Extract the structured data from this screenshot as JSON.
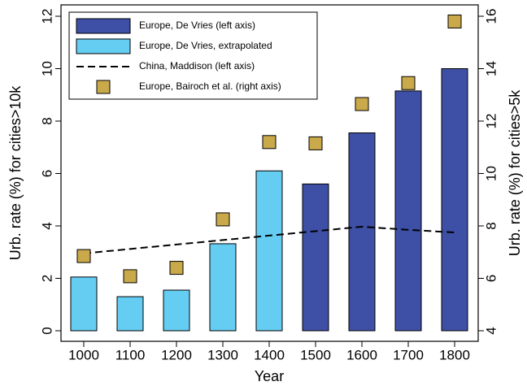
{
  "chart_data": {
    "type": "bar",
    "xlabel": "Year",
    "ylabel": "Urb. rate (%) for cities>10k",
    "y2label": "Urb. rate (%) for cities>5k",
    "categories": [
      "1000",
      "1100",
      "1200",
      "1300",
      "1400",
      "1500",
      "1600",
      "1700",
      "1800"
    ],
    "ylim": [
      0,
      12
    ],
    "yticks": [
      0,
      2,
      4,
      6,
      8,
      10,
      12
    ],
    "y2lim": [
      4,
      16
    ],
    "y2ticks": [
      4,
      6,
      8,
      10,
      12,
      14,
      16
    ],
    "legend": "upper left",
    "series": [
      {
        "name": "Europe, De Vries (left axis)",
        "type": "bar",
        "color": "#3e4fa6",
        "values": [
          null,
          null,
          null,
          null,
          null,
          5.6,
          7.55,
          9.15,
          10
        ]
      },
      {
        "name": "Europe, De Vries, extrapolated",
        "type": "bar",
        "color": "#66cdf2",
        "values": [
          2.05,
          1.3,
          1.55,
          3.32,
          6.1,
          null,
          null,
          null,
          null
        ]
      },
      {
        "name": "China, Maddison (left axis)",
        "type": "line",
        "linestyle": "dashed",
        "color": "#000000",
        "values": [
          2.95,
          3.12,
          3.29,
          3.46,
          3.63,
          3.8,
          3.97,
          3.85,
          3.75
        ]
      },
      {
        "name": "Europe, Bairoch et al. (right axis)",
        "type": "scatter",
        "marker": "square",
        "axis": "y2",
        "color": "#c9a94a",
        "values": [
          6.85,
          6.08,
          6.4,
          8.25,
          11.2,
          11.15,
          12.65,
          13.45,
          15.8
        ]
      }
    ]
  }
}
